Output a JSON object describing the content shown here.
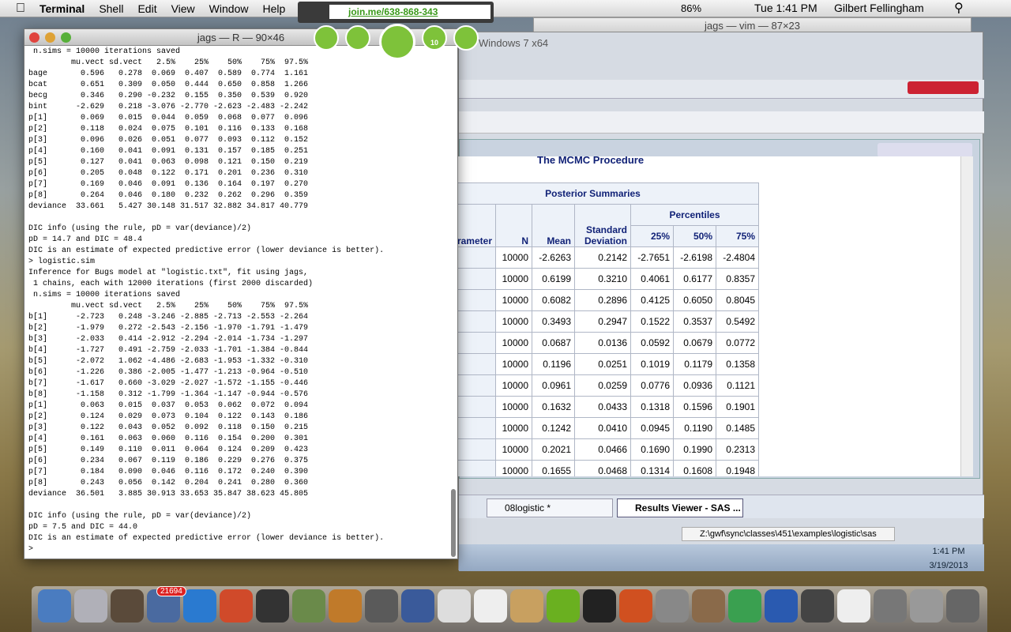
{
  "menubar": {
    "app": "Terminal",
    "menus": [
      "Shell",
      "Edit",
      "View",
      "Window",
      "Help"
    ],
    "battery": "86%",
    "clock": "Tue 1:41 PM",
    "user": "Gilbert Fellingham"
  },
  "joinme": {
    "url": "join.me/638-868-343",
    "viewers": "10"
  },
  "vim_window": {
    "title": "jags — vim — 87×23"
  },
  "terminal": {
    "title": "jags — R — 90×46",
    "blocks": [
      [
        " n.sims = 10000 iterations saved",
        "         mu.vect sd.vect   2.5%    25%    50%    75%  97.5%",
        "bage       0.596   0.278  0.069  0.407  0.589  0.774  1.161",
        "bcat       0.651   0.309  0.050  0.444  0.650  0.858  1.266",
        "becg       0.346   0.290 -0.232  0.155  0.350  0.539  0.920",
        "bint      -2.629   0.218 -3.076 -2.770 -2.623 -2.483 -2.242",
        "p[1]       0.069   0.015  0.044  0.059  0.068  0.077  0.096",
        "p[2]       0.118   0.024  0.075  0.101  0.116  0.133  0.168",
        "p[3]       0.096   0.026  0.051  0.077  0.093  0.112  0.152",
        "p[4]       0.160   0.041  0.091  0.131  0.157  0.185  0.251",
        "p[5]       0.127   0.041  0.063  0.098  0.121  0.150  0.219",
        "p[6]       0.205   0.048  0.122  0.171  0.201  0.236  0.310",
        "p[7]       0.169   0.046  0.091  0.136  0.164  0.197  0.270",
        "p[8]       0.264   0.046  0.180  0.232  0.262  0.296  0.359",
        "deviance  33.661   5.427 30.148 31.517 32.882 34.817 40.779"
      ],
      [
        "DIC info (using the rule, pD = var(deviance)/2)",
        "pD = 14.7 and DIC = 48.4",
        "DIC is an estimate of expected predictive error (lower deviance is better).",
        "> logistic.sim",
        "Inference for Bugs model at \"logistic.txt\", fit using jags,",
        " 1 chains, each with 12000 iterations (first 2000 discarded)",
        " n.sims = 10000 iterations saved",
        "         mu.vect sd.vect   2.5%    25%    50%    75%  97.5%",
        "b[1]      -2.723   0.248 -3.246 -2.885 -2.713 -2.553 -2.264",
        "b[2]      -1.979   0.272 -2.543 -2.156 -1.970 -1.791 -1.479",
        "b[3]      -2.033   0.414 -2.912 -2.294 -2.014 -1.734 -1.297",
        "b[4]      -1.727   0.491 -2.759 -2.033 -1.701 -1.384 -0.844",
        "b[5]      -2.072   1.062 -4.486 -2.683 -1.953 -1.332 -0.310",
        "b[6]      -1.226   0.386 -2.005 -1.477 -1.213 -0.964 -0.510",
        "b[7]      -1.617   0.660 -3.029 -2.027 -1.572 -1.155 -0.446",
        "b[8]      -1.158   0.312 -1.799 -1.364 -1.147 -0.944 -0.576",
        "p[1]       0.063   0.015  0.037  0.053  0.062  0.072  0.094",
        "p[2]       0.124   0.029  0.073  0.104  0.122  0.143  0.186",
        "p[3]       0.122   0.043  0.052  0.092  0.118  0.150  0.215",
        "p[4]       0.161   0.063  0.060  0.116  0.154  0.200  0.301",
        "p[5]       0.149   0.110  0.011  0.064  0.124  0.209  0.423",
        "p[6]       0.234   0.067  0.119  0.186  0.229  0.276  0.375",
        "p[7]       0.184   0.090  0.046  0.116  0.172  0.240  0.390",
        "p[8]       0.243   0.056  0.142  0.204  0.241  0.280  0.360",
        "deviance  36.501   3.885 30.913 33.653 35.847 38.623 45.805"
      ],
      [
        "DIC info (using the rule, pD = var(deviance)/2)",
        "pD = 7.5 and DIC = 44.0",
        "DIC is an estimate of expected predictive error (lower deviance is better).",
        "> "
      ]
    ]
  },
  "vm": {
    "title": "Windows 7 x64",
    "sas": {
      "procedure": "The MCMC Procedure",
      "table": {
        "caption": "Posterior Summaries",
        "parameter": "Parameter",
        "n": "N",
        "mean": "Mean",
        "sd": "Standard Deviation",
        "percentiles": "Percentiles",
        "pct": [
          "25%",
          "50%",
          "75%"
        ],
        "rows": [
          [
            "10000",
            "-2.6263",
            "0.2142",
            "-2.7651",
            "-2.6198",
            "-2.4804"
          ],
          [
            "10000",
            "0.6199",
            "0.3210",
            "0.4061",
            "0.6177",
            "0.8357"
          ],
          [
            "10000",
            "0.6082",
            "0.2896",
            "0.4125",
            "0.6050",
            "0.8045"
          ],
          [
            "10000",
            "0.3493",
            "0.2947",
            "0.1522",
            "0.3537",
            "0.5492"
          ],
          [
            "10000",
            "0.0687",
            "0.0136",
            "0.0592",
            "0.0679",
            "0.0772"
          ],
          [
            "10000",
            "0.1196",
            "0.0251",
            "0.1019",
            "0.1179",
            "0.1358"
          ],
          [
            "10000",
            "0.0961",
            "0.0259",
            "0.0776",
            "0.0936",
            "0.1121"
          ],
          [
            "10000",
            "0.1632",
            "0.0433",
            "0.1318",
            "0.1596",
            "0.1901"
          ],
          [
            "10000",
            "0.1242",
            "0.0410",
            "0.0945",
            "0.1190",
            "0.1485"
          ],
          [
            "10000",
            "0.2021",
            "0.0466",
            "0.1690",
            "0.1990",
            "0.2313"
          ],
          [
            "10000",
            "0.1655",
            "0.0468",
            "0.1314",
            "0.1608",
            "0.1948"
          ]
        ]
      }
    },
    "taskbar": {
      "buttons": [
        "08logistic *",
        "Results Viewer - SAS ..."
      ],
      "path": "Z:\\gwf\\sync\\classes\\451\\examples\\logistic\\sas",
      "time": "1:41 PM",
      "date": "3/19/2013"
    }
  },
  "dock": {
    "badge": "21694"
  }
}
